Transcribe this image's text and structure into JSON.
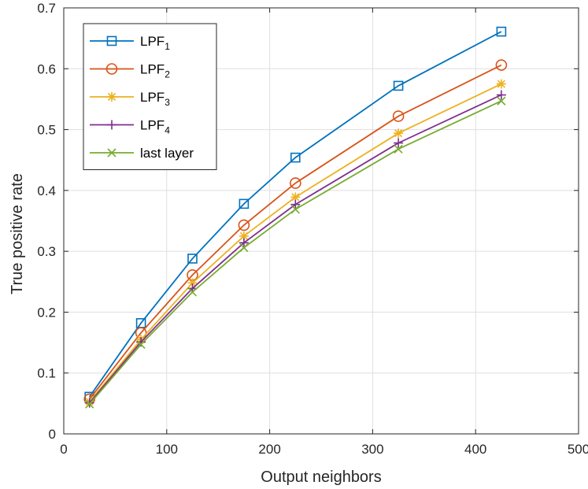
{
  "chart_data": {
    "type": "line",
    "title": "",
    "xlabel": "Output neighbors",
    "ylabel": "True positive rate",
    "xlim": [
      0,
      500
    ],
    "ylim": [
      0,
      0.7
    ],
    "xticks": [
      0,
      100,
      200,
      300,
      400,
      500
    ],
    "xtick_labels": [
      "0",
      "100",
      "200",
      "300",
      "400",
      "500"
    ],
    "yticks": [
      0,
      0.1,
      0.2,
      0.3,
      0.4,
      0.5,
      0.6,
      0.7
    ],
    "ytick_labels": [
      "0",
      "0.1",
      "0.2",
      "0.3",
      "0.4",
      "0.5",
      "0.6",
      "0.7"
    ],
    "grid": true,
    "legend_position": "top-left",
    "x": [
      25,
      75,
      125,
      175,
      225,
      325,
      425
    ],
    "series": [
      {
        "name": "LPF",
        "subscript": "1",
        "marker": "square",
        "color": "#0072BD",
        "values": [
          0.061,
          0.182,
          0.288,
          0.378,
          0.454,
          0.572,
          0.661
        ]
      },
      {
        "name": "LPF",
        "subscript": "2",
        "marker": "circle",
        "color": "#D95319",
        "values": [
          0.057,
          0.166,
          0.261,
          0.343,
          0.412,
          0.522,
          0.606
        ]
      },
      {
        "name": "LPF",
        "subscript": "3",
        "marker": "star",
        "color": "#EDB120",
        "values": [
          0.053,
          0.155,
          0.248,
          0.325,
          0.389,
          0.494,
          0.575
        ]
      },
      {
        "name": "LPF",
        "subscript": "4",
        "marker": "plus",
        "color": "#7E2F8E",
        "values": [
          0.051,
          0.151,
          0.239,
          0.314,
          0.377,
          0.478,
          0.557
        ]
      },
      {
        "name": "last layer",
        "subscript": "",
        "marker": "x",
        "color": "#77AC30",
        "values": [
          0.049,
          0.147,
          0.233,
          0.306,
          0.369,
          0.468,
          0.547
        ]
      }
    ]
  }
}
